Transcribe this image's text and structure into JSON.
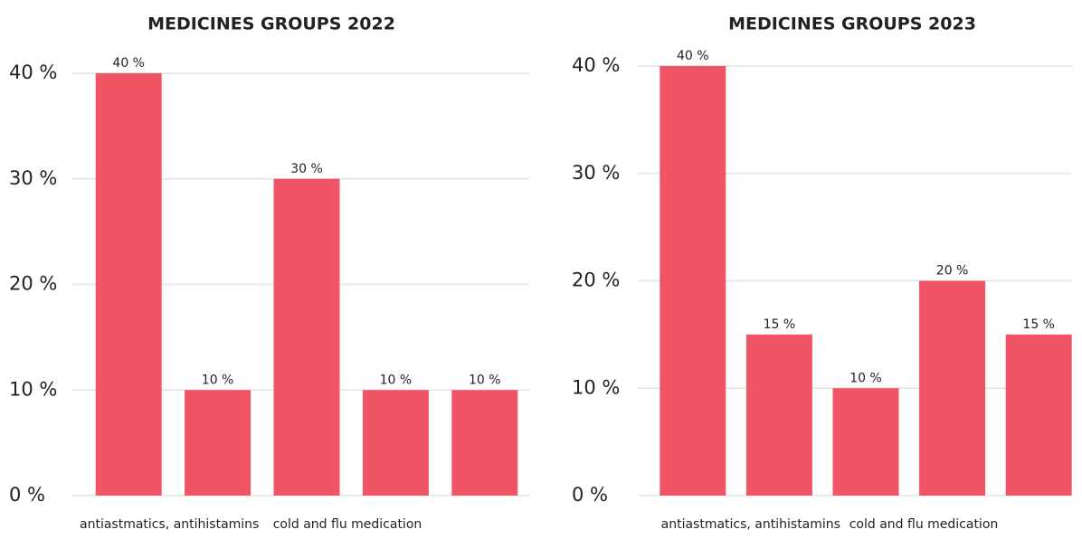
{
  "chart_data": [
    {
      "type": "bar",
      "title": "MEDICINES GROUPS 2022",
      "categories": [
        "antiastmatics, antihistamins",
        null,
        "cold and flu medication",
        null,
        null
      ],
      "values": [
        40,
        10,
        30,
        10,
        10
      ],
      "value_labels": [
        "40 %",
        "10 %",
        "30 %",
        "10 %",
        "10 %"
      ],
      "color": "#f05565",
      "ylim": [
        0,
        40
      ],
      "yticks": [
        {
          "value": 0,
          "label": "0 %"
        },
        {
          "value": 10,
          "label": "10 %"
        },
        {
          "value": 20,
          "label": "20 %"
        },
        {
          "value": 30,
          "label": "30 %"
        },
        {
          "value": 40,
          "label": "40 %"
        }
      ],
      "grid": true
    },
    {
      "type": "bar",
      "title": "MEDICINES GROUPS 2023",
      "categories": [
        "antiastmatics, antihistamins",
        null,
        "cold and flu medication",
        null,
        null
      ],
      "values": [
        40,
        15,
        10,
        20,
        15
      ],
      "value_labels": [
        "40 %",
        "15 %",
        "10 %",
        "20 %",
        "15 %"
      ],
      "color": "#f05565",
      "ylim": [
        0,
        40
      ],
      "yticks": [
        {
          "value": 0,
          "label": "0 %"
        },
        {
          "value": 10,
          "label": "10 %"
        },
        {
          "value": 20,
          "label": "20 %"
        },
        {
          "value": 30,
          "label": "30 %"
        },
        {
          "value": 40,
          "label": "40 %"
        }
      ],
      "grid": true
    }
  ]
}
